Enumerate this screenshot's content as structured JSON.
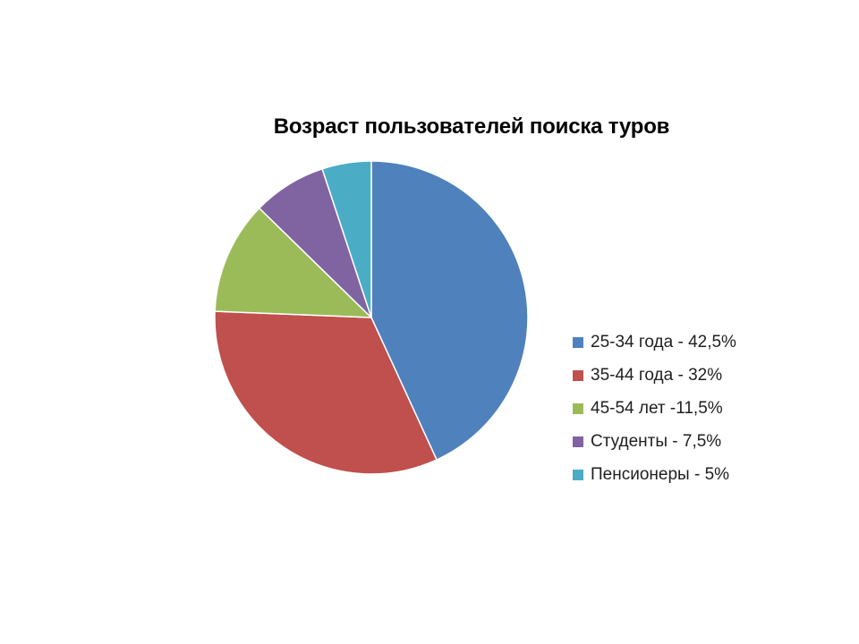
{
  "chart_data": {
    "type": "pie",
    "title": "Возраст пользователей поиска туров",
    "start_angle_deg": 0,
    "direction": "clockwise",
    "legend_position": "right",
    "slices": [
      {
        "label": "25-34 года - 42,5%",
        "value": 42.5,
        "color": "#4f81bd"
      },
      {
        "label": "35-44 года - 32%",
        "value": 32,
        "color": "#c0504d"
      },
      {
        "label": "45-54 лет -11,5%",
        "value": 11.5,
        "color": "#9bbb59"
      },
      {
        "label": "Студенты - 7,5%",
        "value": 7.5,
        "color": "#8064a2"
      },
      {
        "label": "Пенсионеры - 5%",
        "value": 5,
        "color": "#4bacc6"
      }
    ]
  }
}
